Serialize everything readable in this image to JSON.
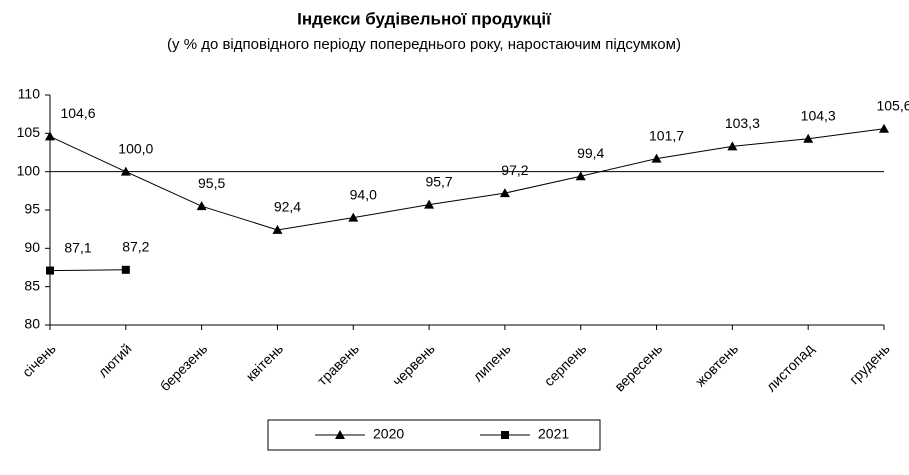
{
  "chart_data": {
    "type": "line",
    "title": "Індекси будівельної продукції",
    "subtitle": "(у % до відповідного періоду попереднього року, наростаючим підсумком)",
    "categories": [
      "січень",
      "лютий",
      "березень",
      "квітень",
      "травень",
      "червень",
      "липень",
      "серпень",
      "вересень",
      "жовтень",
      "листопад",
      "грудень"
    ],
    "series": [
      {
        "name": "2020",
        "color": "#000000",
        "marker": "triangle",
        "values": [
          104.6,
          100.0,
          95.5,
          92.4,
          94.0,
          95.7,
          97.2,
          99.4,
          101.7,
          103.3,
          104.3,
          105.6
        ],
        "value_labels": [
          "104,6",
          "100,0",
          "95,5",
          "92,4",
          "94,0",
          "95,7",
          "97,2",
          "99,4",
          "101,7",
          "103,3",
          "104,3",
          "105,6"
        ]
      },
      {
        "name": "2021",
        "color": "#000000",
        "marker": "square",
        "values": [
          87.1,
          87.2,
          null,
          null,
          null,
          null,
          null,
          null,
          null,
          null,
          null,
          null
        ],
        "value_labels": [
          "87,1",
          "87,2",
          null,
          null,
          null,
          null,
          null,
          null,
          null,
          null,
          null,
          null
        ]
      }
    ],
    "ylim": [
      80,
      110
    ],
    "yticks": [
      80,
      85,
      90,
      95,
      100,
      105,
      110
    ],
    "reference_line": 100,
    "grid": false,
    "legend": "bottom"
  }
}
